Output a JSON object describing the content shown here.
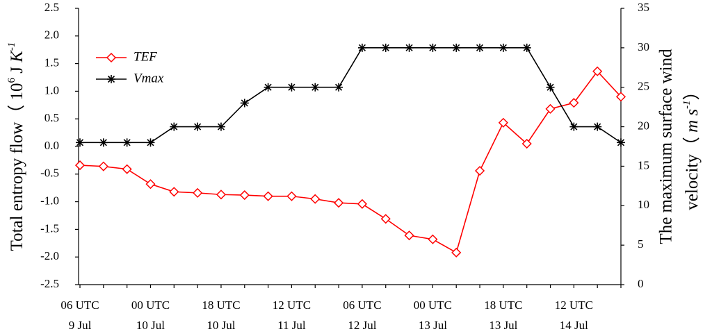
{
  "chart_data": {
    "type": "line",
    "y_label": [
      "Total entropy flow（ 10",
      "6",
      " J ",
      "K",
      "-1"
    ],
    "y2_label": [
      "The maximum surface wind",
      "velocity（ ",
      "m s",
      "-1",
      "）"
    ],
    "categories": [
      "06 UTC",
      null,
      null,
      "00 UTC",
      null,
      null,
      "18 UTC",
      null,
      null,
      "12 UTC",
      null,
      null,
      "06 UTC",
      null,
      null,
      "00 UTC",
      null,
      null,
      "18 UTC",
      null,
      null,
      "12 UTC",
      null,
      null
    ],
    "category_dates": [
      "9 Jul",
      null,
      null,
      "10 Jul",
      null,
      null,
      "10 Jul",
      null,
      null,
      "11 Jul",
      null,
      null,
      "12 Jul",
      null,
      null,
      "13 Jul",
      null,
      null,
      "13 Jul",
      null,
      null,
      "14 Jul",
      null,
      null
    ],
    "series": [
      {
        "name": "TEF",
        "color": "#ff0000",
        "marker": "diamond",
        "values": [
          -0.34,
          -0.36,
          -0.41,
          -0.68,
          -0.82,
          -0.84,
          -0.87,
          -0.88,
          -0.9,
          -0.9,
          -0.95,
          -1.02,
          -1.04,
          -1.31,
          -1.61,
          -1.68,
          -1.92,
          -0.44,
          0.43,
          0.05,
          0.68,
          0.79,
          1.36,
          0.9
        ]
      },
      {
        "name": "Vmax",
        "color": "#000000",
        "marker": "asterisk",
        "axis": "y2",
        "values": [
          18,
          18,
          18,
          18,
          20,
          20,
          20,
          23,
          25,
          25,
          25,
          25,
          30,
          30,
          30,
          30,
          30,
          30,
          30,
          30,
          25,
          20,
          20,
          18
        ]
      }
    ],
    "ylim": [
      -2.5,
      2.5
    ],
    "yticks": [
      -2.5,
      {
        "value": -2,
        "label": "-2.0"
      },
      -1.5,
      {
        "value": -1,
        "label": "-1.0"
      },
      -0.5,
      {
        "value": 0,
        "label": "0.0"
      },
      0.5,
      {
        "value": 1,
        "label": "1.0"
      },
      1.5,
      {
        "value": 2,
        "label": "2.0"
      },
      2.5
    ],
    "y2lim": [
      0,
      35
    ],
    "y2ticks": [
      0,
      5,
      10,
      15,
      20,
      25,
      30,
      35
    ],
    "legend": "upper left",
    "grid": false
  }
}
